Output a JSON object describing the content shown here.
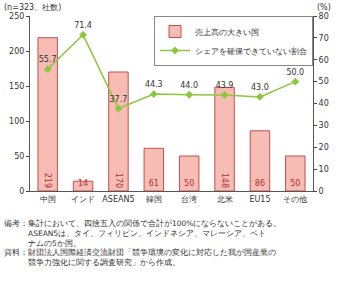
{
  "chart_data": {
    "type": "bar",
    "y_label": "(n=323、社数)",
    "y2_label": "(%)",
    "categories": [
      "中国",
      "インド",
      "ASEAN5",
      "韓国",
      "台湾",
      "北米",
      "EU15",
      "その他"
    ],
    "series": [
      {
        "name": "売上高の大きい国",
        "type": "bar",
        "axis": "y",
        "color": "#f7bdb5",
        "values": [
          219,
          14,
          170,
          61,
          50,
          148,
          86,
          50
        ]
      },
      {
        "name": "シェアを確保できていない割合",
        "type": "line",
        "axis": "y2",
        "color": "#8dc63f",
        "marker": "diamond",
        "values": [
          55.7,
          71.4,
          37.7,
          44.3,
          44.0,
          43.9,
          43.0,
          50.0
        ],
        "value_labels": [
          "55.7",
          "71.4",
          "37.7",
          "44.3",
          "44.0",
          "43.9",
          "43.0",
          "50.0"
        ]
      }
    ],
    "ylim": [
      0,
      250
    ],
    "yticks": [
      0,
      50,
      100,
      150,
      200,
      250
    ],
    "y2lim": [
      0,
      80
    ],
    "y2ticks": [
      0,
      10,
      20,
      30,
      40,
      50,
      60,
      70,
      80
    ],
    "grid": false,
    "legend": "top right",
    "data_labels": true,
    "notes": [
      "備考：集計において、四捨五入の関係で合計が100%にならないことがある。",
      "　　　ASEAN5は、タイ、フィリピン、インドネシア、マレーシア、ベト",
      "　　　ナムの5か国。",
      "資料：財団法人国際経済交流財団「競争環境の変化に対応した我が国産業の",
      "　　　競争力強化に関する調査研究」から作成。"
    ]
  }
}
